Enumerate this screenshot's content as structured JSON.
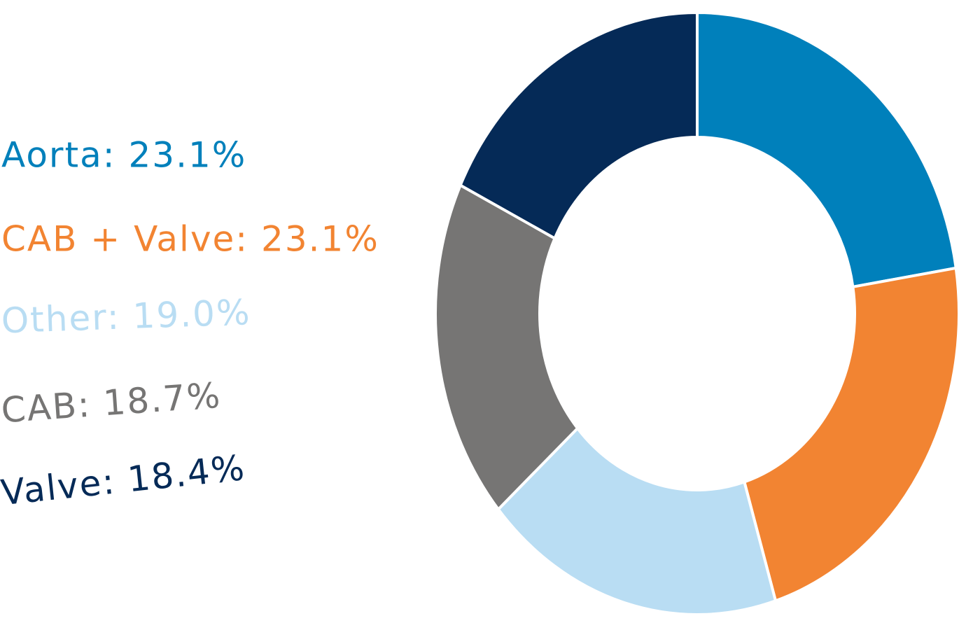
{
  "chart_data": {
    "type": "donut",
    "categories": [
      "Aorta",
      "CAB + Valve",
      "Other",
      "CAB",
      "Valve"
    ],
    "labels": [
      "Aorta: 23.1%",
      "CAB + Valve: 23.1%",
      "Other: 19.0%",
      "CAB: 18.7%",
      "Valve: 18.4%"
    ],
    "values": [
      23.1,
      23.1,
      19.0,
      18.7,
      18.4
    ],
    "colors": [
      "#0080bb",
      "#f28432",
      "#b9ddf3",
      "#767574",
      "#052a57"
    ]
  }
}
